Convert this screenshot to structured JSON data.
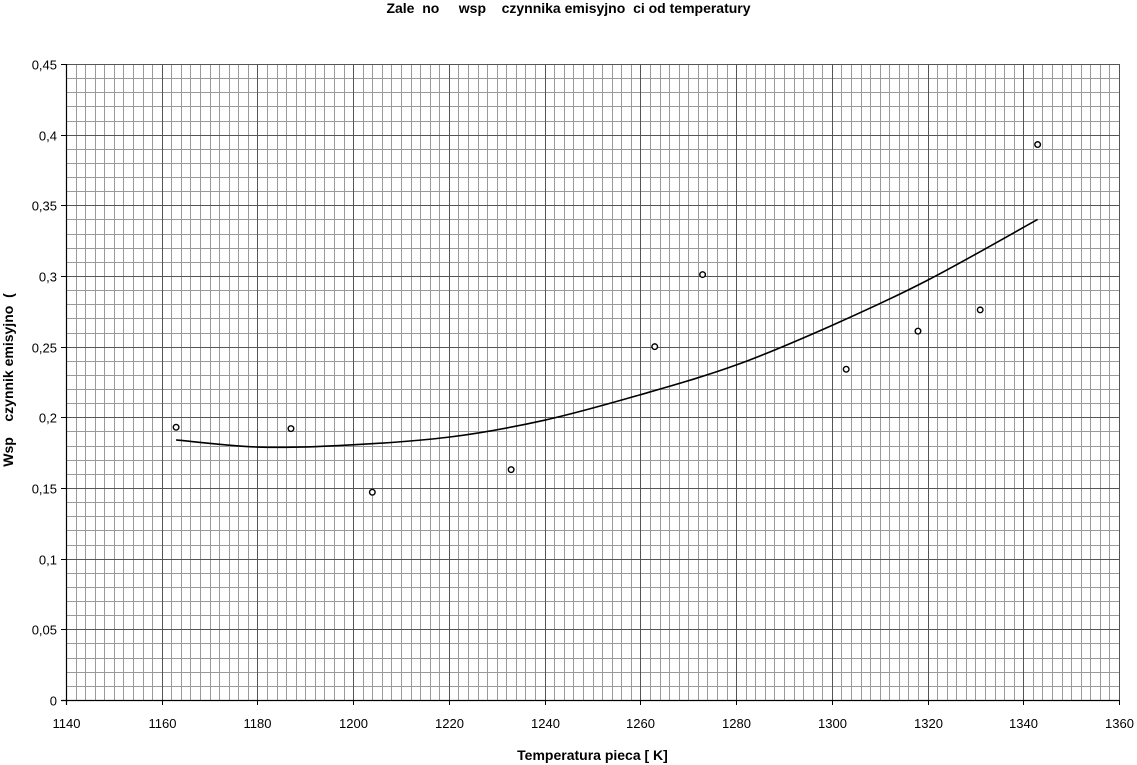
{
  "chart_data": {
    "type": "scatter",
    "title": "Zale  no     wsp    czynnika emisyjno  ci od temperatury",
    "xlabel": "Temperatura pieca [ K]",
    "ylabel": "Wsp    czynnik emisyjno  (",
    "xlim": [
      1140,
      1360
    ],
    "ylim": [
      0,
      0.45
    ],
    "x_ticks": [
      "1140",
      "1160",
      "1180",
      "1200",
      "1220",
      "1240",
      "1260",
      "1280",
      "1300",
      "1320",
      "1340",
      "1360"
    ],
    "y_ticks": [
      "0",
      "0,05",
      "0,1",
      "0,15",
      "0,2",
      "0,25",
      "0,3",
      "0,35",
      "0,4",
      "0,45"
    ],
    "grid": true,
    "legend": "none",
    "series": [
      {
        "type": "scatter",
        "marker": "open-circle",
        "color": "#000000",
        "points": [
          {
            "x": 1163,
            "y": 0.193
          },
          {
            "x": 1187,
            "y": 0.192
          },
          {
            "x": 1204,
            "y": 0.147
          },
          {
            "x": 1233,
            "y": 0.163
          },
          {
            "x": 1263,
            "y": 0.25
          },
          {
            "x": 1273,
            "y": 0.301
          },
          {
            "x": 1303,
            "y": 0.234
          },
          {
            "x": 1318,
            "y": 0.261
          },
          {
            "x": 1331,
            "y": 0.276
          },
          {
            "x": 1343,
            "y": 0.393
          }
        ]
      },
      {
        "type": "line",
        "style": "polynomial-trendline",
        "color": "#000000",
        "points": [
          {
            "x": 1163,
            "y": 0.184
          },
          {
            "x": 1180,
            "y": 0.179
          },
          {
            "x": 1197,
            "y": 0.18
          },
          {
            "x": 1220,
            "y": 0.186
          },
          {
            "x": 1240,
            "y": 0.198
          },
          {
            "x": 1260,
            "y": 0.216
          },
          {
            "x": 1280,
            "y": 0.237
          },
          {
            "x": 1300,
            "y": 0.265
          },
          {
            "x": 1320,
            "y": 0.297
          },
          {
            "x": 1343,
            "y": 0.34
          }
        ]
      }
    ]
  }
}
